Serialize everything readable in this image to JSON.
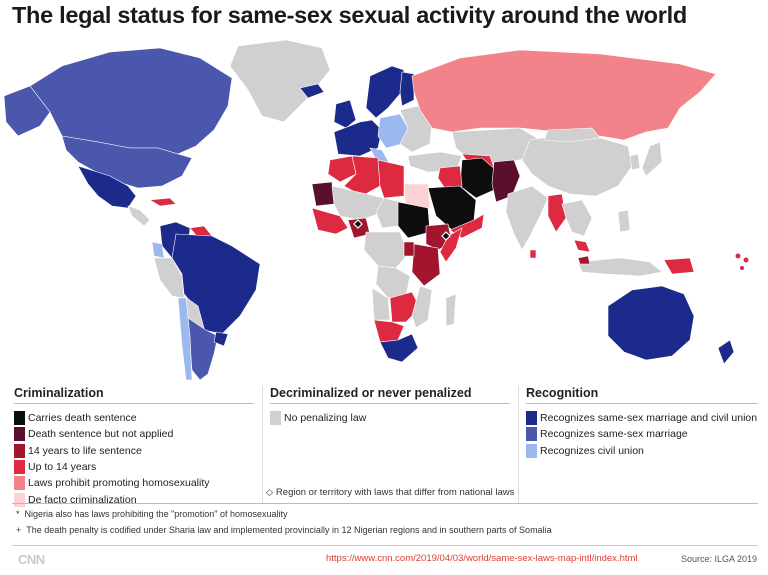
{
  "title": "The legal status for same-sex sexual activity around the world",
  "colors": {
    "ocean": "#ffffff",
    "death_sentence": "#0d0d0d",
    "death_not_applied": "#5b0f2e",
    "fourteen_to_life": "#a3142f",
    "up_to_14": "#dd2a40",
    "promotion_laws": "#f3838a",
    "de_facto": "#fbd3d6",
    "no_penalizing_law": "#d0d0d0",
    "marriage_and_civil_union": "#1c2a8c",
    "marriage": "#4a57ad",
    "civil_union": "#9cb9ef"
  },
  "legend": {
    "criminalization": {
      "heading": "Criminalization",
      "items": [
        {
          "label": "Carries death sentence",
          "color": "#0d0d0d"
        },
        {
          "label": "Death sentence but not applied",
          "color": "#5b0f2e"
        },
        {
          "label": "14 years to life sentence",
          "color": "#a3142f"
        },
        {
          "label": "Up to 14 years",
          "color": "#dd2a40"
        },
        {
          "label": "Laws prohibit promoting homosexuality",
          "color": "#f3838a"
        },
        {
          "label": "De facto criminalization",
          "color": "#fbd3d6"
        }
      ]
    },
    "decriminalized": {
      "heading": "Decriminalized or never penalized",
      "items": [
        {
          "label": "No penalizing law",
          "color": "#d0d0d0"
        }
      ],
      "territory_note": "Region or territory with laws that differ from national laws",
      "territory_icon": "diamond-outline-icon"
    },
    "recognition": {
      "heading": "Recognition",
      "items": [
        {
          "label": "Recognizes same-sex marriage and civil union",
          "color": "#1c2a8c"
        },
        {
          "label": "Recognizes same-sex marriage",
          "color": "#4a57ad"
        },
        {
          "label": "Recognizes civil union",
          "color": "#9cb9ef"
        }
      ]
    }
  },
  "footnotes": [
    {
      "mark": "*",
      "text": "Nigeria also has laws prohibiting the \"promotion\" of homosexuality"
    },
    {
      "mark": "+",
      "text": "The death penalty is codified under Sharia law and implemented provincially in 12 Nigerian regions and in southern parts of Somalia"
    }
  ],
  "footer": {
    "logo": "CNN",
    "url": "https://www.cnn.com/2019/04/03/world/same-sex-laws-map-intl/index.html",
    "source": "Source: ILGA 2019"
  }
}
